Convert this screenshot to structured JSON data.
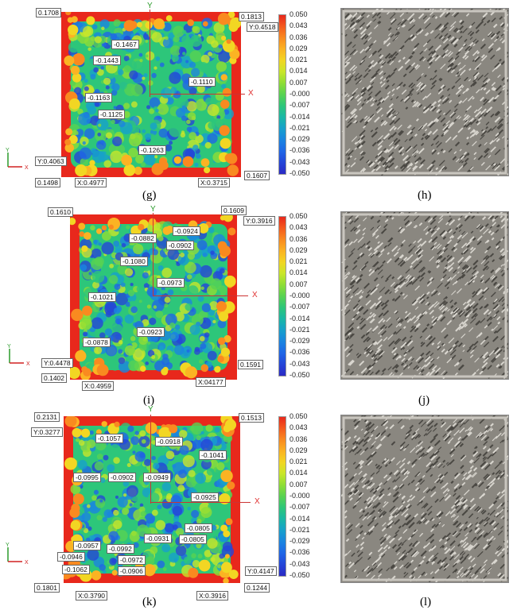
{
  "colorscale": {
    "ticks": [
      "0.050",
      "0.043",
      "0.036",
      "0.029",
      "0.021",
      "0.014",
      "0.007",
      "-0.000",
      "-0.007",
      "-0.014",
      "-0.021",
      "-0.029",
      "-0.036",
      "-0.043",
      "-0.050"
    ],
    "colors": [
      "#e8281c",
      "#f45a1e",
      "#f98a20",
      "#fbb323",
      "#f2d623",
      "#c8e62a",
      "#8edd36",
      "#57d252",
      "#2dc67a",
      "#1ab7a6",
      "#17a0cc",
      "#1a84e0",
      "#1f66e6",
      "#2445d8",
      "#2a2ac4"
    ]
  },
  "axis": {
    "x": "X",
    "y": "Y"
  },
  "panels": [
    {
      "caption_left": "(g)",
      "caption_right": "(h)",
      "corners": {
        "tl": "0.1708",
        "tr1": "0.1813",
        "tr2": "Y:0.4518",
        "bl1": "Y:0.4063",
        "bl2": "0.1498",
        "bl3": "X:0.4977",
        "br1": "X:0.3715",
        "br2": "0.1607"
      },
      "labels": [
        "-0.1467",
        "-0.1443",
        "-0.1110",
        "-0.1163",
        "-0.1125",
        "-0.1263"
      ]
    },
    {
      "caption_left": "(i)",
      "caption_right": "(j)",
      "corners": {
        "tl": "0.1610",
        "tr1": "0.1609",
        "tr2": "Y:0.3916",
        "bl1": "Y:0.4478",
        "bl2": "0.1402",
        "bl3": "X:0.4959",
        "br1": "X:04177",
        "br2": "0.1591"
      },
      "labels": [
        "-0.0882",
        "-0.0924",
        "-0.0902",
        "-0.1080",
        "-0.0973",
        "-0.1021",
        "-0.0923",
        "-0.0878"
      ]
    },
    {
      "caption_left": "(k)",
      "caption_right": "(l)",
      "corners": {
        "tl": "0.2131",
        "tl2": "Y:0.3277",
        "tr1": "0.1513",
        "bl1": "0.1801",
        "bl3": "X:0.3790",
        "br1": "X:0.3916",
        "br2": "0.1244",
        "br3": "Y:0.4147"
      },
      "labels": [
        "-0.1057",
        "-0.0918",
        "-0.1041",
        "-0.0995",
        "-0.0902",
        "-0.0949",
        "-0.0925",
        "-0.0805",
        "-0.0931",
        "-0.0805",
        "-0.0957",
        "-0.0992",
        "-0.0946",
        "-0.0972",
        "-0.1062",
        "-0.0906"
      ]
    }
  ]
}
